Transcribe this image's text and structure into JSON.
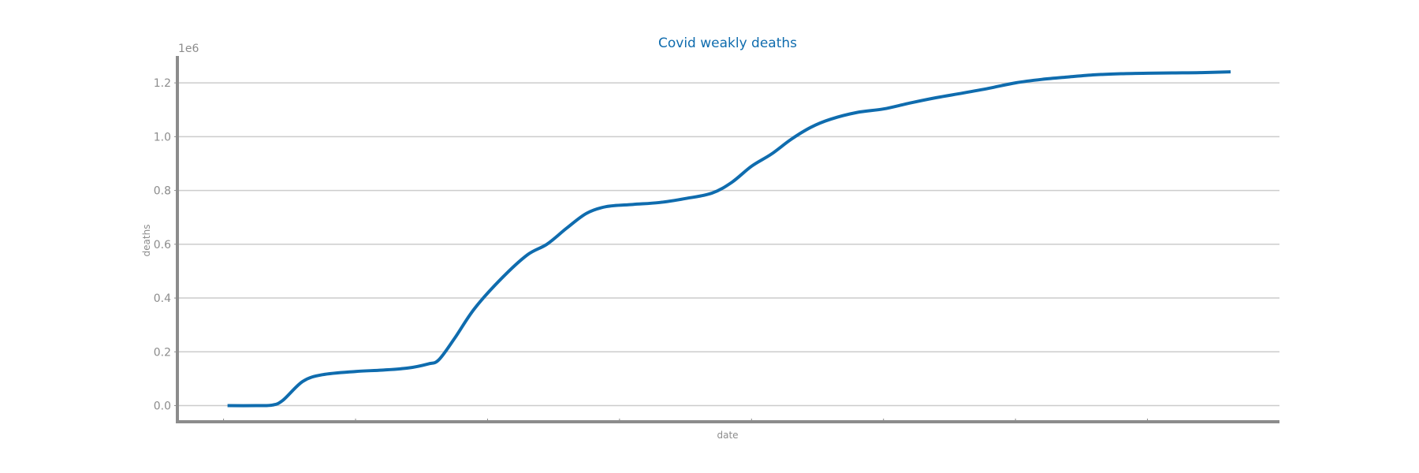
{
  "chart_data": {
    "type": "line",
    "title": "Covid weakly deaths",
    "xlabel": "date",
    "ylabel": "deaths",
    "y_offset_label": "1e6",
    "ylim": [
      -0.06,
      1.3
    ],
    "xlim": [
      -0.35,
      8.0
    ],
    "ytick_labels": [
      "0.0",
      "0.2",
      "0.4",
      "0.6",
      "0.8",
      "1.0",
      "1.2"
    ],
    "ytick_values": [
      0.0,
      0.2,
      0.4,
      0.6,
      0.8,
      1.0,
      1.2
    ],
    "x_tick_positions": [
      0,
      1,
      2,
      3,
      4,
      5,
      6,
      7
    ],
    "grid": true,
    "colors": {
      "line": "#0f6cae",
      "title": "#0f6cae",
      "axis": "#8c8c8c",
      "grid": "#cccccc"
    },
    "series": [
      {
        "x": [
          0.03,
          0.25,
          0.37,
          0.45,
          0.6,
          0.75,
          1.0,
          1.2,
          1.4,
          1.55,
          1.63,
          1.75,
          1.9,
          2.1,
          2.3,
          2.45,
          2.6,
          2.75,
          2.9,
          3.1,
          3.3,
          3.5,
          3.7,
          3.85,
          4.0,
          4.15,
          4.3,
          4.45,
          4.6,
          4.8,
          5.0,
          5.2,
          5.4,
          5.6,
          5.8,
          6.0,
          6.2,
          6.4,
          6.6,
          6.8,
          7.0,
          7.2,
          7.4,
          7.63
        ],
        "y": [
          0.0,
          0.0,
          0.002,
          0.02,
          0.09,
          0.115,
          0.127,
          0.132,
          0.14,
          0.155,
          0.17,
          0.25,
          0.36,
          0.47,
          0.56,
          0.6,
          0.66,
          0.715,
          0.74,
          0.748,
          0.755,
          0.77,
          0.79,
          0.83,
          0.89,
          0.935,
          0.99,
          1.035,
          1.065,
          1.09,
          1.103,
          1.125,
          1.145,
          1.162,
          1.18,
          1.2,
          1.213,
          1.222,
          1.23,
          1.234,
          1.236,
          1.237,
          1.238,
          1.241
        ]
      }
    ]
  }
}
